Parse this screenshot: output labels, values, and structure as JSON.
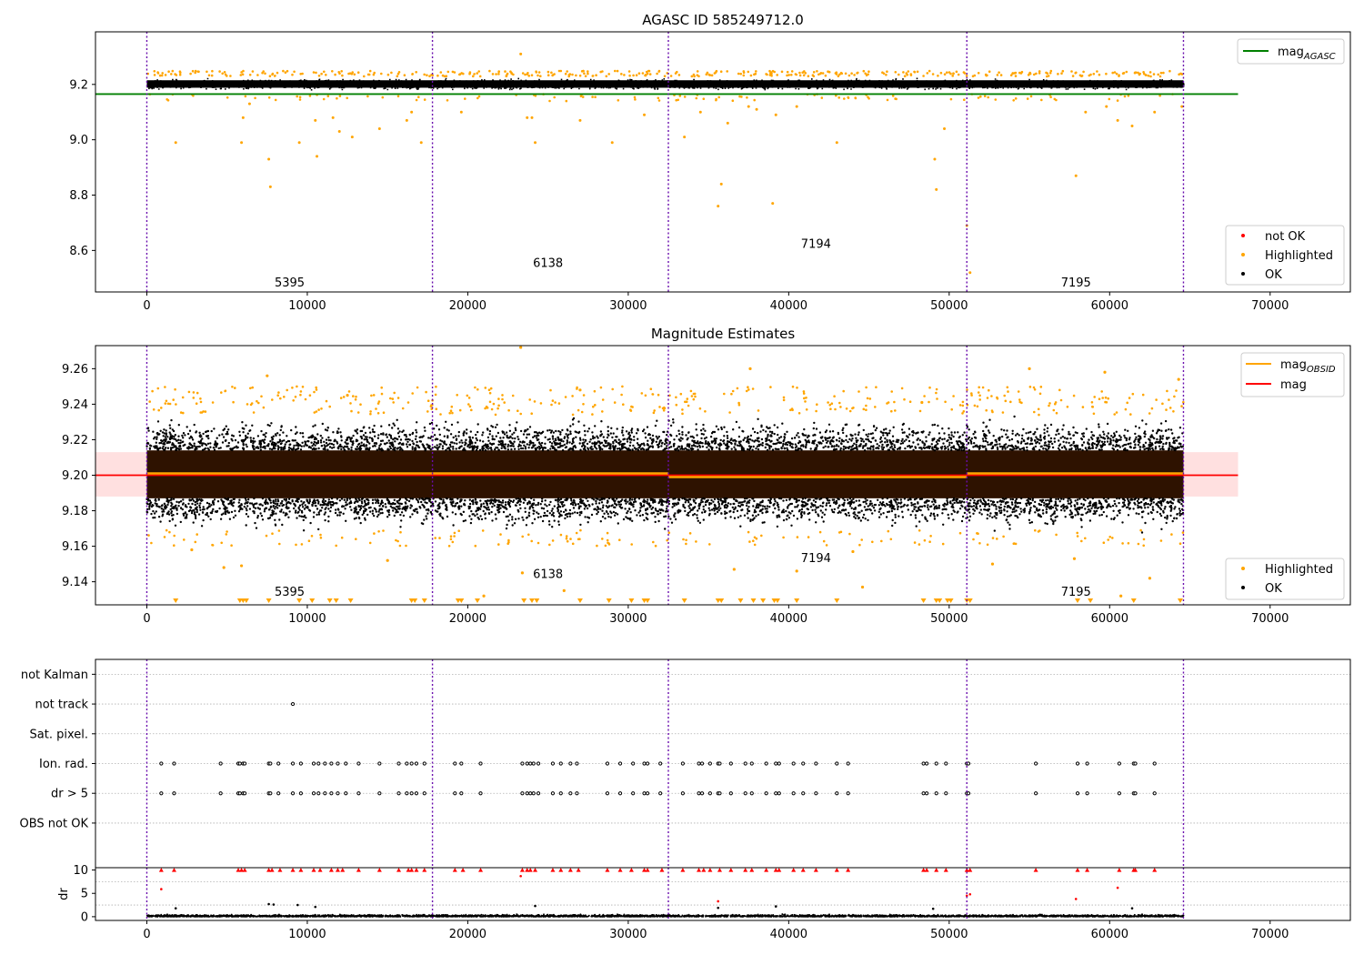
{
  "chart_data": [
    {
      "type": "scatter",
      "title": "AGASC ID 585249712.0",
      "xlim": [
        -3200,
        75000
      ],
      "ylim": [
        8.45,
        9.39
      ],
      "yticks": [
        "9.2",
        "9.0",
        "8.8",
        "8.6"
      ],
      "ytick_values": [
        9.2,
        9.0,
        8.8,
        8.6
      ],
      "xticks": [
        "0",
        "10000",
        "20000",
        "30000",
        "40000",
        "50000",
        "60000",
        "70000"
      ],
      "xtick_values": [
        0,
        10000,
        20000,
        30000,
        40000,
        50000,
        60000,
        70000
      ],
      "obs_boundaries": [
        0,
        17800,
        32500,
        51100,
        64600
      ],
      "obsid_labels": [
        {
          "text": "5395",
          "x": 8900,
          "y": 8.47
        },
        {
          "text": "6138",
          "x": 25000,
          "y": 8.54
        },
        {
          "text": "7194",
          "x": 41700,
          "y": 8.61
        },
        {
          "text": "7195",
          "x": 57900,
          "y": 8.47
        }
      ],
      "reference_line": {
        "name": "mag",
        "sub": "AGASC",
        "y": 9.165,
        "x_range": [
          -3200,
          68000
        ],
        "color": "#008000"
      },
      "ok_band": [
        9.18,
        9.225
      ],
      "legend_top": [
        {
          "name": "mag",
          "sub": "AGASC",
          "color": "#008000"
        }
      ],
      "legend_bottom": [
        {
          "name": "not OK",
          "color": "#ff0000"
        },
        {
          "name": "Highlighted",
          "color": "#ffa500"
        },
        {
          "name": "OK",
          "color": "#000000"
        }
      ],
      "highlighted_outliers": [
        [
          1800,
          8.99
        ],
        [
          5900,
          8.99
        ],
        [
          6000,
          9.08
        ],
        [
          6400,
          9.13
        ],
        [
          7600,
          8.93
        ],
        [
          7700,
          8.83
        ],
        [
          9500,
          8.99
        ],
        [
          10500,
          9.07
        ],
        [
          10600,
          8.94
        ],
        [
          11600,
          9.08
        ],
        [
          12000,
          9.03
        ],
        [
          12800,
          9.01
        ],
        [
          14500,
          9.04
        ],
        [
          16200,
          9.07
        ],
        [
          16500,
          9.1
        ],
        [
          17100,
          8.99
        ],
        [
          19600,
          9.1
        ],
        [
          23300,
          9.31
        ],
        [
          23700,
          9.08
        ],
        [
          24000,
          9.08
        ],
        [
          24200,
          8.99
        ],
        [
          27000,
          9.07
        ],
        [
          29000,
          8.99
        ],
        [
          31000,
          9.09
        ],
        [
          33500,
          9.01
        ],
        [
          34500,
          9.1
        ],
        [
          35600,
          8.76
        ],
        [
          35800,
          8.84
        ],
        [
          36200,
          9.06
        ],
        [
          37500,
          9.12
        ],
        [
          38000,
          9.11
        ],
        [
          39000,
          8.77
        ],
        [
          39200,
          9.09
        ],
        [
          40500,
          9.12
        ],
        [
          43000,
          8.99
        ],
        [
          49100,
          8.93
        ],
        [
          49200,
          8.82
        ],
        [
          49700,
          9.04
        ],
        [
          51100,
          8.69
        ],
        [
          51300,
          8.52
        ],
        [
          57900,
          8.87
        ],
        [
          58500,
          9.1
        ],
        [
          59800,
          9.12
        ],
        [
          60500,
          9.07
        ],
        [
          61400,
          9.05
        ],
        [
          62800,
          9.1
        ],
        [
          64500,
          9.12
        ]
      ]
    },
    {
      "type": "scatter",
      "title": "Magnitude Estimates",
      "xlim": [
        -3200,
        75000
      ],
      "ylim": [
        9.127,
        9.273
      ],
      "yticks": [
        "9.26",
        "9.24",
        "9.22",
        "9.20",
        "9.18",
        "9.16",
        "9.14"
      ],
      "ytick_values": [
        9.26,
        9.24,
        9.22,
        9.2,
        9.18,
        9.16,
        9.14
      ],
      "xticks": [
        "0",
        "10000",
        "20000",
        "30000",
        "40000",
        "50000",
        "60000",
        "70000"
      ],
      "xtick_values": [
        0,
        10000,
        20000,
        30000,
        40000,
        50000,
        60000,
        70000
      ],
      "obs_boundaries": [
        0,
        17800,
        32500,
        51100,
        64600
      ],
      "obsid_labels": [
        {
          "text": "5395",
          "x": 8900,
          "y": 9.132
        },
        {
          "text": "6138",
          "x": 25000,
          "y": 9.142
        },
        {
          "text": "7194",
          "x": 41700,
          "y": 9.151
        },
        {
          "text": "7195",
          "x": 57900,
          "y": 9.132
        }
      ],
      "mean_mag": {
        "name": "mag",
        "y": 9.2,
        "x_range": [
          -3200,
          68000
        ],
        "color": "#ff0000"
      },
      "mean_band": [
        9.188,
        9.213
      ],
      "obsid_means": [
        {
          "x0": 0,
          "x1": 17800,
          "y": 9.201
        },
        {
          "x0": 17800,
          "x1": 32500,
          "y": 9.201
        },
        {
          "x0": 32500,
          "x1": 51100,
          "y": 9.199
        },
        {
          "x0": 51100,
          "x1": 64600,
          "y": 9.201
        }
      ],
      "ok_core": [
        9.187,
        9.214
      ],
      "legend_top": [
        {
          "name": "mag",
          "sub": "OBSID",
          "color": "#ffa500"
        },
        {
          "name": "mag",
          "sub": "",
          "color": "#ff0000"
        }
      ],
      "legend_bottom": [
        {
          "name": "Highlighted",
          "color": "#ffa500"
        },
        {
          "name": "OK",
          "color": "#000000"
        }
      ],
      "highlighted_outliers": [
        [
          7500,
          9.256
        ],
        [
          23300,
          9.272
        ],
        [
          23400,
          9.145
        ],
        [
          37600,
          9.26
        ],
        [
          55000,
          9.26
        ],
        [
          59700,
          9.258
        ],
        [
          64300,
          9.254
        ],
        [
          12500,
          9.245
        ],
        [
          27000,
          9.248
        ],
        [
          48300,
          9.241
        ],
        [
          4800,
          9.148
        ],
        [
          5900,
          9.149
        ],
        [
          21000,
          9.132
        ],
        [
          26000,
          9.135
        ],
        [
          36600,
          9.147
        ],
        [
          40500,
          9.146
        ],
        [
          44600,
          9.137
        ],
        [
          60700,
          9.132
        ],
        [
          62500,
          9.142
        ],
        [
          15000,
          9.152
        ],
        [
          2800,
          9.158
        ],
        [
          52700,
          9.15
        ],
        [
          57800,
          9.153
        ],
        [
          44000,
          9.157
        ]
      ],
      "clipped_low_x": [
        1800,
        5800,
        6000,
        6200,
        7600,
        9500,
        10300,
        11400,
        11800,
        12700,
        16500,
        16700,
        17300,
        19400,
        19600,
        20600,
        23500,
        24000,
        24300,
        27000,
        28800,
        30200,
        31000,
        31200,
        33500,
        35600,
        35800,
        37000,
        37800,
        38400,
        39100,
        39300,
        40500,
        43000,
        48400,
        49200,
        49400,
        49900,
        50100,
        51100,
        51300,
        58000,
        58800,
        61500,
        64400
      ]
    },
    {
      "type": "scatter",
      "title": "",
      "xlim": [
        -3200,
        75000
      ],
      "ylim": [
        -0.5,
        6.5
      ],
      "categories": [
        "not Kalman",
        "not track",
        "Sat. pixel.",
        "Ion. rad.",
        "dr > 5",
        "OBS not OK"
      ],
      "category_values": [
        6,
        5,
        4,
        3,
        2,
        1
      ],
      "obs_boundaries": [
        0,
        17800,
        32500,
        51100,
        64600
      ],
      "flag_points": [
        {
          "category": "not track",
          "x": [
            9100
          ]
        },
        {
          "category": "Ion. rad.",
          "x": [
            900,
            1700,
            4600,
            5700,
            5800,
            6000,
            6100,
            7600,
            7700,
            8200,
            9100,
            9600,
            10400,
            10700,
            11100,
            11500,
            11900,
            12400,
            13200,
            14500,
            15700,
            16200,
            16500,
            16800,
            17300,
            19200,
            19600,
            20800,
            23400,
            23700,
            23900,
            24100,
            24400,
            25300,
            25800,
            26400,
            26800,
            28700,
            29500,
            30300,
            31000,
            31200,
            32000,
            33400,
            34400,
            34600,
            35100,
            35600,
            35700,
            36400,
            37300,
            37700,
            38600,
            39200,
            39400,
            40300,
            40900,
            41700,
            43000,
            43700,
            48400,
            48600,
            49200,
            49800,
            51100,
            51200,
            55400,
            58000,
            58600,
            60600,
            61500,
            61600,
            62800
          ]
        },
        {
          "category": "dr > 5",
          "x": [
            900,
            1700,
            4600,
            5700,
            5800,
            6000,
            6100,
            7600,
            7700,
            8200,
            9100,
            9600,
            10400,
            10700,
            11100,
            11500,
            11900,
            12400,
            13200,
            14500,
            15700,
            16200,
            16500,
            16800,
            17300,
            19200,
            19600,
            20800,
            23400,
            23700,
            23900,
            24100,
            24400,
            25300,
            25800,
            26400,
            26800,
            28700,
            29500,
            30300,
            31000,
            31200,
            32000,
            33400,
            34400,
            34600,
            35100,
            35600,
            35700,
            36400,
            37300,
            37700,
            38600,
            39200,
            39400,
            40300,
            40900,
            41700,
            43000,
            43700,
            48400,
            48600,
            49200,
            49800,
            51100,
            51200,
            55400,
            58000,
            58600,
            60600,
            61500,
            61600,
            62800
          ]
        }
      ]
    },
    {
      "type": "scatter",
      "title": "",
      "ylabel": "dr",
      "xlim": [
        -3200,
        75000
      ],
      "ylim": [
        -0.8,
        10.5
      ],
      "yticks": [
        "10",
        "5",
        "0"
      ],
      "ytick_values": [
        10,
        5,
        0
      ],
      "xticks": [
        "0",
        "10000",
        "20000",
        "30000",
        "40000",
        "50000",
        "60000",
        "70000"
      ],
      "xtick_values": [
        0,
        10000,
        20000,
        30000,
        40000,
        50000,
        60000,
        70000
      ],
      "obs_boundaries": [
        0,
        17800,
        32500,
        51100,
        64600
      ],
      "clipped_high_x": [
        900,
        1700,
        5700,
        5900,
        6100,
        7600,
        7800,
        8300,
        9100,
        9600,
        10400,
        10800,
        11500,
        11900,
        12200,
        13200,
        14500,
        15700,
        16300,
        16500,
        16800,
        17300,
        19200,
        19700,
        20800,
        23400,
        23700,
        23900,
        24200,
        25300,
        25800,
        26400,
        26900,
        28700,
        29500,
        30200,
        31000,
        31200,
        32100,
        33400,
        34400,
        34700,
        35100,
        35700,
        36400,
        37300,
        37700,
        38600,
        39200,
        39400,
        40300,
        40900,
        41700,
        43000,
        43700,
        48400,
        48600,
        49200,
        49800,
        51100,
        51300,
        55400,
        58000,
        58600,
        60600,
        61500,
        61600,
        62800
      ],
      "outlier_points": [
        {
          "x": 900,
          "y": 5.9,
          "flag": "not OK"
        },
        {
          "x": 23300,
          "y": 8.7,
          "flag": "not OK"
        },
        {
          "x": 35600,
          "y": 3.3,
          "flag": "not OK"
        },
        {
          "x": 51100,
          "y": 4.5,
          "flag": "not OK"
        },
        {
          "x": 51300,
          "y": 4.8,
          "flag": "not OK"
        },
        {
          "x": 57900,
          "y": 3.8,
          "flag": "not OK"
        },
        {
          "x": 60500,
          "y": 6.2,
          "flag": "not OK"
        },
        {
          "x": 1800,
          "y": 1.8,
          "flag": "OK"
        },
        {
          "x": 7600,
          "y": 2.7,
          "flag": "OK"
        },
        {
          "x": 7900,
          "y": 2.6,
          "flag": "OK"
        },
        {
          "x": 9400,
          "y": 2.5,
          "flag": "OK"
        },
        {
          "x": 10500,
          "y": 2.1,
          "flag": "OK"
        },
        {
          "x": 24200,
          "y": 2.3,
          "flag": "OK"
        },
        {
          "x": 35600,
          "y": 1.9,
          "flag": "OK"
        },
        {
          "x": 39200,
          "y": 2.2,
          "flag": "OK"
        },
        {
          "x": 49000,
          "y": 1.7,
          "flag": "OK"
        },
        {
          "x": 61400,
          "y": 1.8,
          "flag": "OK"
        }
      ]
    }
  ]
}
